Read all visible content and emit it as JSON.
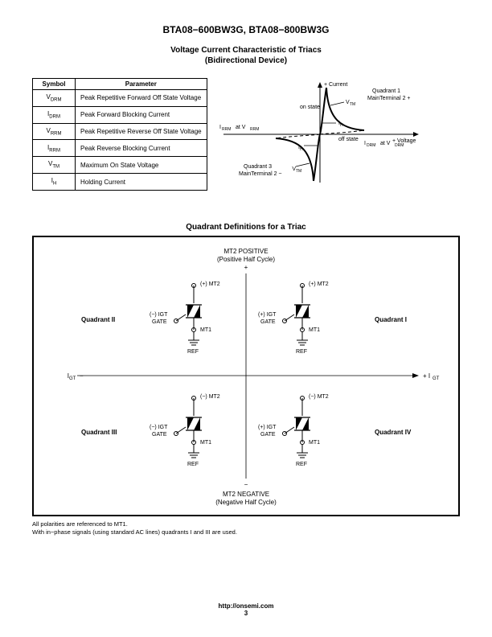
{
  "header": {
    "title": "BTA08−600BW3G, BTA08−800BW3G"
  },
  "section1": {
    "title_line1": "Voltage Current Characteristic of Triacs",
    "title_line2": "(Bidirectional Device)"
  },
  "param_table": {
    "headers": [
      "Symbol",
      "Parameter"
    ],
    "rows": [
      {
        "sym_html": "V<sub>DRM</sub>",
        "param": "Peak Repetitive Forward Off State Voltage"
      },
      {
        "sym_html": "I<sub>DRM</sub>",
        "param": "Peak Forward Blocking Current"
      },
      {
        "sym_html": "V<sub>RRM</sub>",
        "param": "Peak Repetitive Reverse Off State Voltage"
      },
      {
        "sym_html": "I<sub>RRM</sub>",
        "param": "Peak Reverse Blocking Current"
      },
      {
        "sym_html": "V<sub>TM</sub>",
        "param": "Maximum On State Voltage"
      },
      {
        "sym_html": "I<sub>H</sub>",
        "param": "Holding Current"
      }
    ]
  },
  "vi_diagram": {
    "labels": {
      "current_plus": "+ Current",
      "voltage_plus": "+ Voltage",
      "on_state": "on state",
      "off_state": "off state",
      "vtm": "VTM",
      "ih": "IH",
      "irrm_vrrm": "IRRM at VRRM",
      "idrm_vdrm": "IDRM at VDRM",
      "q1": "Quadrant 1",
      "q1_sub": "MainTerminal 2 +",
      "q3": "Quadrant 3",
      "q3_sub": "MainTerminal 2 −"
    }
  },
  "quad_section": {
    "title": "Quadrant Definitions for a Triac",
    "top_label": "MT2 POSITIVE",
    "top_sub": "(Positive Half Cycle)",
    "bottom_label": "MT2 NEGATIVE",
    "bottom_sub": "(Negative Half Cycle)",
    "left_axis": "IGT −",
    "right_axis": "+ IGT",
    "plus": "+",
    "minus": "−",
    "quadrants": {
      "q1": "Quadrant I",
      "q2": "Quadrant II",
      "q3": "Quadrant III",
      "q4": "Quadrant IV"
    },
    "symbol_labels": {
      "mt2_plus": "(+) MT2",
      "mt2_minus": "(−) MT2",
      "igt_plus": "(+) IGT",
      "igt_minus": "(−) IGT",
      "gate": "GATE",
      "mt1": "MT1",
      "ref": "REF"
    },
    "footnote1": "All polarities are referenced to MT1.",
    "footnote2": "With in−phase signals (using standard AC lines) quadrants I and III are used."
  },
  "footer": {
    "url": "http://onsemi.com",
    "page": "3"
  },
  "colors": {
    "black": "#000000",
    "white": "#ffffff"
  }
}
